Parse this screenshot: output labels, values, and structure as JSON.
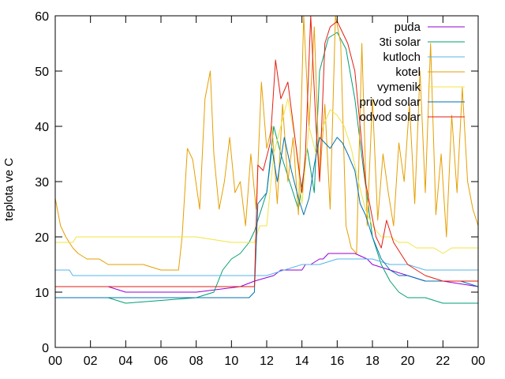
{
  "chart_data": {
    "type": "line",
    "title": "",
    "xlabel": "",
    "ylabel": "teplota ve C",
    "xlim": [
      0,
      24
    ],
    "ylim": [
      0,
      60
    ],
    "x_ticks": [
      "00",
      "02",
      "04",
      "06",
      "08",
      "10",
      "12",
      "14",
      "16",
      "18",
      "20",
      "22",
      "00"
    ],
    "y_ticks": [
      "0",
      "10",
      "20",
      "30",
      "40",
      "50",
      "60"
    ],
    "grid": false,
    "legend_position": "top-right",
    "series": [
      {
        "name": "puda",
        "color": "#9400d3",
        "x": [
          0,
          3,
          4,
          8,
          10.5,
          11.3,
          12.4,
          12.8,
          14,
          14.2,
          14.5,
          15,
          15.2,
          15.5,
          17,
          17.7,
          18,
          19,
          20,
          21,
          22,
          24
        ],
        "y": [
          11,
          11,
          10,
          10,
          11,
          12,
          13,
          14,
          14,
          15,
          15,
          16,
          16,
          17,
          17,
          16,
          15,
          14,
          13,
          12,
          12,
          11
        ]
      },
      {
        "name": "3ti solar",
        "color": "#009e73",
        "x": [
          0,
          3,
          4,
          8,
          9,
          9.5,
          10,
          10.5,
          11,
          11.3,
          11.5,
          12,
          12.4,
          12.8,
          13.3,
          13.8,
          14.3,
          14.7,
          15,
          15.5,
          16,
          16.5,
          17,
          17.5,
          18,
          18.5,
          19,
          19.5,
          20,
          21,
          22,
          23,
          24
        ],
        "y": [
          9,
          9,
          8,
          9,
          10,
          14,
          16,
          17,
          19,
          21,
          23,
          28,
          40,
          35,
          30,
          25,
          36,
          28,
          50,
          56,
          57,
          54,
          45,
          32,
          20,
          15,
          12,
          10,
          9,
          9,
          8,
          8,
          8
        ]
      },
      {
        "name": "kutloch",
        "color": "#56b4e9",
        "x": [
          0,
          0.8,
          1,
          5,
          10,
          11.5,
          12,
          13,
          14,
          15,
          16,
          17,
          17.5,
          18,
          19,
          20,
          21,
          24
        ],
        "y": [
          14,
          14,
          13,
          13,
          13,
          13,
          13,
          14,
          15,
          15,
          16,
          16,
          16,
          16,
          15,
          15,
          14,
          14
        ]
      },
      {
        "name": "kotel",
        "color": "#e69f00",
        "x": [
          0,
          0.3,
          0.6,
          1,
          1.3,
          1.8,
          2.5,
          3,
          4,
          5,
          6,
          7,
          7.2,
          7.5,
          7.8,
          8.2,
          8.5,
          8.8,
          9,
          9.3,
          9.6,
          9.9,
          10.2,
          10.5,
          10.8,
          11.1,
          11.4,
          11.7,
          12,
          12.3,
          12.6,
          12.9,
          13.2,
          13.5,
          13.8,
          14.1,
          14.4,
          14.7,
          15,
          15.3,
          15.6,
          15.9,
          16.2,
          16.5,
          16.8,
          17.1,
          17.4,
          17.7,
          18,
          18.3,
          18.6,
          18.9,
          19.2,
          19.5,
          19.8,
          20.1,
          20.4,
          20.7,
          21,
          21.3,
          21.6,
          21.9,
          22.2,
          22.5,
          22.8,
          23.1,
          23.4,
          23.7,
          24
        ],
        "y": [
          27,
          22,
          20,
          18,
          17,
          16,
          16,
          15,
          15,
          15,
          14,
          14,
          20,
          36,
          34,
          25,
          45,
          50,
          35,
          25,
          30,
          38,
          28,
          30,
          22,
          35,
          25,
          48,
          36,
          40,
          26,
          44,
          30,
          38,
          24,
          60,
          40,
          58,
          30,
          44,
          25,
          60,
          55,
          22,
          18,
          17,
          55,
          22,
          45,
          23,
          35,
          28,
          22,
          37,
          30,
          44,
          26,
          50,
          28,
          55,
          24,
          35,
          20,
          42,
          28,
          47,
          30,
          25,
          22
        ]
      },
      {
        "name": "vymenik",
        "color": "#f0e442",
        "x": [
          0,
          0.5,
          1,
          1.2,
          5,
          7.2,
          8,
          10,
          11.3,
          11.6,
          12,
          12.4,
          12.8,
          13.2,
          13.6,
          14,
          14.4,
          14.8,
          15.2,
          15.6,
          16,
          16.4,
          16.8,
          17.2,
          17.6,
          18,
          18.5,
          19,
          19.5,
          20,
          20.5,
          21,
          21.5,
          22,
          22.5,
          23,
          23.5,
          24
        ],
        "y": [
          19,
          19,
          19,
          20,
          20,
          20,
          20,
          19,
          19,
          22,
          22,
          35,
          40,
          45,
          38,
          26,
          40,
          35,
          40,
          43,
          42,
          40,
          36,
          30,
          25,
          22,
          20,
          20,
          19,
          19,
          18,
          18,
          18,
          17,
          18,
          18,
          18,
          18
        ]
      },
      {
        "name": "privod solar",
        "color": "#0072b2",
        "x": [
          0,
          3,
          4,
          8,
          10,
          11,
          11.3,
          11.5,
          12,
          12.3,
          12.6,
          13,
          13.4,
          13.8,
          14.1,
          14.4,
          14.7,
          15,
          15.3,
          15.6,
          16,
          16.3,
          16.6,
          17,
          17.3,
          17.6,
          18,
          18.5,
          19,
          19.5,
          20,
          21,
          22,
          23,
          24
        ],
        "y": [
          9,
          9,
          9,
          9,
          9,
          9,
          10,
          26,
          28,
          36,
          30,
          38,
          32,
          27,
          24,
          27,
          33,
          38,
          37,
          36,
          38,
          37,
          35,
          32,
          26,
          24,
          20,
          16,
          14,
          13,
          13,
          12,
          12,
          12,
          11
        ]
      },
      {
        "name": "odvod solar",
        "color": "#e51e10",
        "x": [
          0,
          3,
          4,
          8,
          10,
          11,
          11.3,
          11.5,
          11.8,
          12.2,
          12.5,
          12.8,
          13.2,
          13.6,
          14,
          14.2,
          14.5,
          14.8,
          15,
          15.3,
          15.6,
          16,
          16.3,
          16.6,
          17,
          17.3,
          17.6,
          17.9,
          18.2,
          18.5,
          18.8,
          19.2,
          19.6,
          20,
          20.5,
          21,
          22,
          23,
          24
        ],
        "y": [
          11,
          11,
          11,
          11,
          11,
          11,
          11,
          33,
          32,
          37,
          52,
          45,
          48,
          38,
          28,
          35,
          62,
          40,
          30,
          55,
          58,
          59,
          57,
          55,
          50,
          40,
          30,
          25,
          20,
          18,
          23,
          19,
          17,
          15,
          14,
          13,
          12,
          12,
          12
        ]
      }
    ]
  }
}
